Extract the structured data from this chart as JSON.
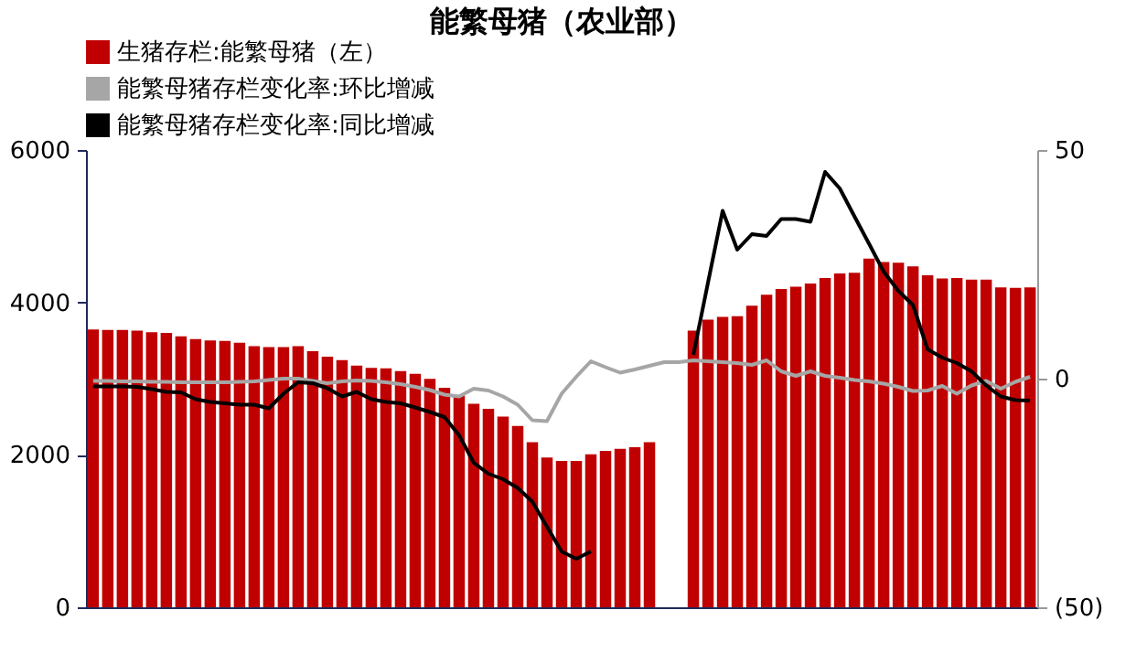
{
  "chart_data": {
    "type": "bar",
    "title": "能繁母猪（农业部）",
    "categories": [
      null,
      null,
      null,
      null,
      null,
      null,
      null,
      null,
      null,
      null,
      null,
      null,
      null,
      null,
      null,
      null,
      null,
      null,
      null,
      null,
      null,
      null,
      null,
      null,
      null,
      null,
      null,
      null,
      null,
      null,
      null,
      null,
      null,
      null,
      null,
      null,
      null,
      null,
      null,
      null,
      null,
      null,
      null,
      null,
      null,
      null,
      null,
      null,
      null,
      null,
      null,
      null,
      null,
      null,
      null,
      null,
      null,
      null,
      null,
      null,
      null,
      null,
      null,
      null,
      null
    ],
    "series": [
      {
        "name": "生猪存栏:能繁母猪（左）",
        "color": "#c00000",
        "values": [
          3644,
          3640,
          3640,
          3630,
          3610,
          3600,
          3556,
          3520,
          3500,
          3495,
          3470,
          3425,
          3415,
          3415,
          3425,
          3360,
          3287,
          3243,
          3170,
          3142,
          3135,
          3098,
          3062,
          2996,
          2880,
          2778,
          2669,
          2604,
          2502,
          2378,
          2167,
          1964,
          1920,
          1920,
          2007,
          2051,
          2080,
          2100,
          2167,
          null,
          null,
          3630,
          3775,
          3810,
          3820,
          3956,
          4102,
          4175,
          4205,
          4248,
          4320,
          4379,
          4390,
          4575,
          4530,
          4520,
          4473,
          4357,
          4313,
          4320,
          4298,
          4298,
          4196,
          4190,
          4196
        ]
      },
      {
        "name": "能繁母猪存栏变化率:环比增减",
        "color": "#a6a6a6",
        "type": "line",
        "axis": "y2",
        "values": [
          -0.5,
          -0.5,
          -0.6,
          -0.6,
          -0.7,
          -0.7,
          -0.8,
          -0.8,
          -0.8,
          -0.8,
          -0.7,
          -0.6,
          -0.3,
          0,
          0,
          -0.5,
          -1,
          -0.6,
          -0.4,
          -0.5,
          -0.8,
          -1.2,
          -1.8,
          -2.5,
          -3.5,
          -3.9,
          -2.2,
          -2.6,
          -3.9,
          -5.7,
          -9.1,
          -9.3,
          -3.3,
          0.4,
          3.8,
          2.5,
          1.3,
          2,
          2.8,
          3.6,
          3.6,
          4,
          3.8,
          3.6,
          3.4,
          3,
          4,
          1.6,
          0.6,
          1.6,
          0.6,
          0.2,
          -0.3,
          -0.6,
          -1.1,
          -1.8,
          -2.7,
          -2.6,
          -1.6,
          -3.3,
          -1.5,
          -0.5,
          -2.2,
          -0.7,
          0.4
        ]
      },
      {
        "name": "能繁母猪存栏变化率:同比增减",
        "color": "#000000",
        "type": "line",
        "axis": "y2",
        "values": [
          -1.7,
          -1.7,
          -1.7,
          -1.8,
          -2.3,
          -2.9,
          -3,
          -4.5,
          -5.1,
          -5.4,
          -5.7,
          -5.7,
          -6.5,
          -3.3,
          -0.8,
          -1,
          -2.1,
          -3.9,
          -2.9,
          -4.5,
          -5.1,
          -5.4,
          -6.3,
          -7.3,
          -8.4,
          -12.4,
          -18.4,
          -20.8,
          -22,
          -23.9,
          -26.9,
          -32.4,
          -37.8,
          -39.4,
          -37.8,
          null,
          null,
          null,
          null,
          null,
          null,
          5.2,
          21,
          36.7,
          28.2,
          31.6,
          31.2,
          34.9,
          34.9,
          34.3,
          45.2,
          41.6,
          35.5,
          29.5,
          23.4,
          19.2,
          16.1,
          6.4,
          4.6,
          3.4,
          1.6,
          -1.5,
          -3.9,
          -4.7,
          -4.8
        ]
      }
    ],
    "ylim": [
      0,
      6000
    ],
    "yticks": [
      0,
      2000,
      4000,
      6000
    ],
    "y2lim": [
      -50,
      50
    ],
    "y2ticks": [
      {
        "value": -50,
        "label": "(50)"
      },
      0,
      50
    ],
    "legend": "top",
    "grid": false,
    "tick_labels": "y"
  }
}
